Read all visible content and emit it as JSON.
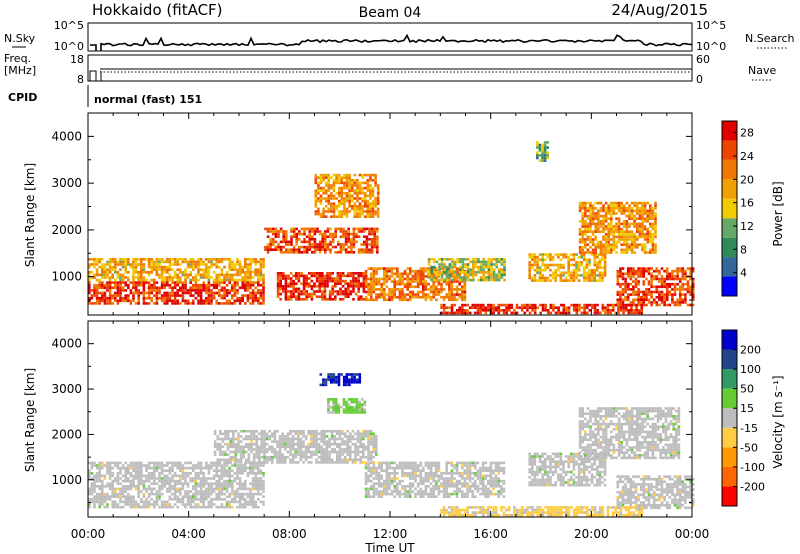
{
  "header": {
    "station": "Hokkaido (fitACF)",
    "beam": "Beam 04",
    "date": "24/Aug/2015"
  },
  "status_panel": {
    "nsky_label": "N.Sky",
    "nsearch_label": "N.Search",
    "freq_label_1": "Freq.",
    "freq_label_2": "[MHz]",
    "nave_label": "Nave",
    "cpid_label": "CPID",
    "cpid_value": "normal (fast) 151",
    "noise_ticks": [
      "10^5",
      "10^0"
    ],
    "freq_ticks": [
      "18",
      "8"
    ],
    "nave_ticks": [
      "60",
      "0"
    ]
  },
  "colors": {
    "power_scale": [
      "#0000ff",
      "#336699",
      "#2e8b57",
      "#66a866",
      "#f2cc00",
      "#f0a000",
      "#f07800",
      "#ee4400",
      "#e00000"
    ],
    "velocity_scale": [
      "#ff0000",
      "#ff6600",
      "#ff9900",
      "#ffcc44",
      "#bdbdbd",
      "#66cc33",
      "#339966",
      "#224488",
      "#0000cc"
    ],
    "ground_scatter": "#bdbdbd"
  },
  "chart_data": [
    {
      "type": "heatmap",
      "name": "power",
      "xlabel": "Time UT",
      "ylabel": "Slant Range [km]",
      "xlim": [
        "00:00",
        "24:00"
      ],
      "ylim": [
        180,
        4500
      ],
      "x_ticks": [
        "00:00",
        "04:00",
        "08:00",
        "12:00",
        "16:00",
        "20:00",
        "00:00"
      ],
      "y_ticks": [
        1000,
        2000,
        3000,
        4000
      ],
      "colorbar_label": "Power [dB]",
      "colorbar_ticks": [
        4,
        8,
        12,
        16,
        20,
        24,
        28
      ],
      "colorbar_range": [
        0,
        30
      ],
      "regions": [
        {
          "t": [
            0.0,
            7.0
          ],
          "r": [
            400,
            900
          ],
          "v": 26
        },
        {
          "t": [
            0.0,
            7.0
          ],
          "r": [
            900,
            1400
          ],
          "v": 18
        },
        {
          "t": [
            7.0,
            11.5
          ],
          "r": [
            1500,
            2050
          ],
          "v": 24
        },
        {
          "t": [
            7.5,
            11.0
          ],
          "r": [
            500,
            1100
          ],
          "v": 27
        },
        {
          "t": [
            9.0,
            11.5
          ],
          "r": [
            2300,
            3200
          ],
          "v": 20
        },
        {
          "t": [
            11.0,
            15.0
          ],
          "r": [
            500,
            1200
          ],
          "v": 22
        },
        {
          "t": [
            13.5,
            16.5
          ],
          "r": [
            900,
            1400
          ],
          "v": 14
        },
        {
          "t": [
            17.5,
            20.5
          ],
          "r": [
            900,
            1500
          ],
          "v": 18
        },
        {
          "t": [
            19.5,
            22.5
          ],
          "r": [
            1500,
            2600
          ],
          "v": 20
        },
        {
          "t": [
            21.0,
            24.0
          ],
          "r": [
            400,
            1200
          ],
          "v": 25
        },
        {
          "t": [
            14.0,
            22.0
          ],
          "r": [
            230,
            420
          ],
          "v": 27
        },
        {
          "t": [
            17.8,
            18.3
          ],
          "r": [
            3500,
            3900
          ],
          "v": 11
        }
      ]
    },
    {
      "type": "heatmap",
      "name": "velocity",
      "xlabel": "Time UT",
      "ylabel": "Slant Range [km]",
      "xlim": [
        "00:00",
        "24:00"
      ],
      "ylim": [
        180,
        4500
      ],
      "x_ticks": [
        "00:00",
        "04:00",
        "08:00",
        "12:00",
        "16:00",
        "20:00",
        "00:00"
      ],
      "y_ticks": [
        1000,
        2000,
        3000,
        4000
      ],
      "colorbar_label": "Velocity [m s⁻¹]",
      "colorbar_ticks": [
        -200,
        -100,
        -50,
        -15,
        15,
        50,
        100,
        200
      ],
      "colorbar_range": [
        -250,
        250
      ],
      "ground_scatter": [
        {
          "t": [
            0.0,
            7.0
          ],
          "r": [
            400,
            1400
          ]
        },
        {
          "t": [
            5.0,
            11.5
          ],
          "r": [
            1400,
            2100
          ]
        },
        {
          "t": [
            11.0,
            16.5
          ],
          "r": [
            600,
            1400
          ]
        },
        {
          "t": [
            17.5,
            20.5
          ],
          "r": [
            900,
            1600
          ]
        },
        {
          "t": [
            19.5,
            23.5
          ],
          "r": [
            1500,
            2600
          ]
        },
        {
          "t": [
            21.0,
            24.0
          ],
          "r": [
            400,
            1100
          ]
        }
      ],
      "ionospheric": [
        {
          "t": [
            9.2,
            10.8
          ],
          "r": [
            3100,
            3350
          ],
          "v": 210
        },
        {
          "t": [
            9.5,
            11.0
          ],
          "r": [
            2500,
            2800
          ],
          "v": 40
        },
        {
          "t": [
            14.0,
            22.0
          ],
          "r": [
            230,
            420
          ],
          "v": -40
        }
      ]
    }
  ]
}
